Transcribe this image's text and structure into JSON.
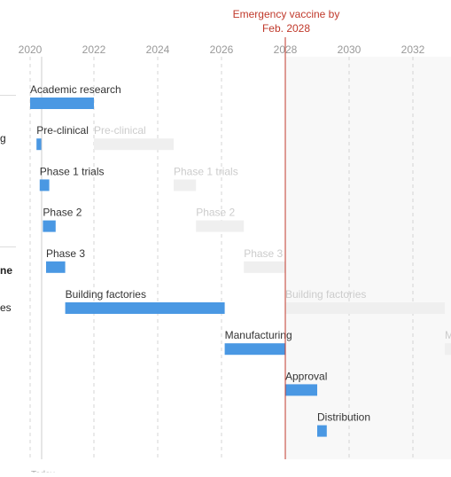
{
  "annotation": {
    "emergency_line1": "Emergency vaccine by",
    "emergency_line2": "Feb. 2028",
    "emergency_date": 2028.0
  },
  "left_labels": [
    {
      "text": "g",
      "bold": false
    },
    {
      "text": "ne",
      "bold": true
    },
    {
      "text": "es",
      "bold": false
    }
  ],
  "colors": {
    "bar": "#4a98e3",
    "ghost_bar": "#efefef",
    "ghost_text": "#cccccc",
    "label_text": "#333333",
    "emergency_line": "#c0392b",
    "grid": "#d4d4d4",
    "shaded_future": "#f8f8f8"
  },
  "chart_data": {
    "type": "gantt",
    "xlim": [
      2019.6,
      2033.2
    ],
    "x_ticks": [
      2020,
      2022,
      2024,
      2026,
      2028,
      2030,
      2032
    ],
    "grid": true,
    "bottom_tick_partial": "Today",
    "series": [
      {
        "name": "Academic research",
        "start": 2020.0,
        "end": 2022.0
      },
      {
        "name": "Pre-clinical",
        "start": 2020.2,
        "end": 2020.35,
        "ghost": {
          "label": "Pre-clinical",
          "start": 2022.0,
          "end": 2024.5
        }
      },
      {
        "name": "Phase 1 trials",
        "start": 2020.3,
        "end": 2020.6,
        "ghost": {
          "label": "Phase 1 trials",
          "start": 2024.5,
          "end": 2025.2
        }
      },
      {
        "name": "Phase 2",
        "start": 2020.4,
        "end": 2020.8,
        "ghost": {
          "label": "Phase 2",
          "start": 2025.2,
          "end": 2026.7
        }
      },
      {
        "name": "Phase 3",
        "start": 2020.5,
        "end": 2021.1,
        "ghost": {
          "label": "Phase 3",
          "start": 2026.7,
          "end": 2028.0
        }
      },
      {
        "name": "Building factories",
        "start": 2021.1,
        "end": 2026.1,
        "ghost": {
          "label": "Building factories",
          "start": 2028.0,
          "end": 2033.0
        }
      },
      {
        "name": "Manufacturing",
        "start": 2026.1,
        "end": 2028.0,
        "ghost": {
          "label": "M",
          "start": 2033.0,
          "end": 2033.5
        }
      },
      {
        "name": "Approval",
        "start": 2028.0,
        "end": 2029.0
      },
      {
        "name": "Distribution",
        "start": 2029.0,
        "end": 2029.3
      }
    ]
  }
}
